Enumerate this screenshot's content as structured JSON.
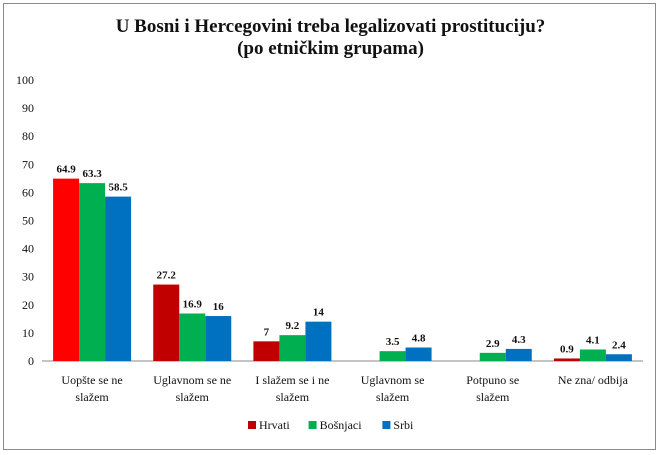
{
  "chart_data": {
    "type": "bar",
    "title": "U Bosni i Hercegovini treba legalizovati prostituciju?",
    "subtitle": "(po etničkim grupama)",
    "categories": [
      [
        "Uopšte se ne",
        "slažem"
      ],
      [
        "Uglavnom se ne",
        "slažem"
      ],
      [
        "I slažem se i ne",
        "slažem"
      ],
      [
        "Uglavnom se",
        "slažem"
      ],
      [
        "Potpuno se",
        "slažem"
      ],
      [
        "Ne zna/ odbija",
        ""
      ]
    ],
    "series": [
      {
        "name": "Hrvati",
        "color": "#ff0000",
        "values": [
          64.9,
          27.2,
          7,
          null,
          null,
          0.9
        ]
      },
      {
        "name": "Bošnjaci",
        "color": "#00b050",
        "values": [
          63.3,
          16.9,
          9.2,
          3.5,
          2.9,
          4.1
        ]
      },
      {
        "name": "Srbi",
        "color": "#0070c0",
        "values": [
          58.5,
          16,
          14,
          4.8,
          4.3,
          2.4
        ]
      }
    ],
    "first_bar_color": "#ff0000",
    "hrvati_other_color": "#c00000",
    "ylim": [
      0,
      100
    ],
    "yticks": [
      0,
      10,
      20,
      30,
      40,
      50,
      60,
      70,
      80,
      90,
      100
    ],
    "legend_position": "bottom",
    "grid": false
  }
}
